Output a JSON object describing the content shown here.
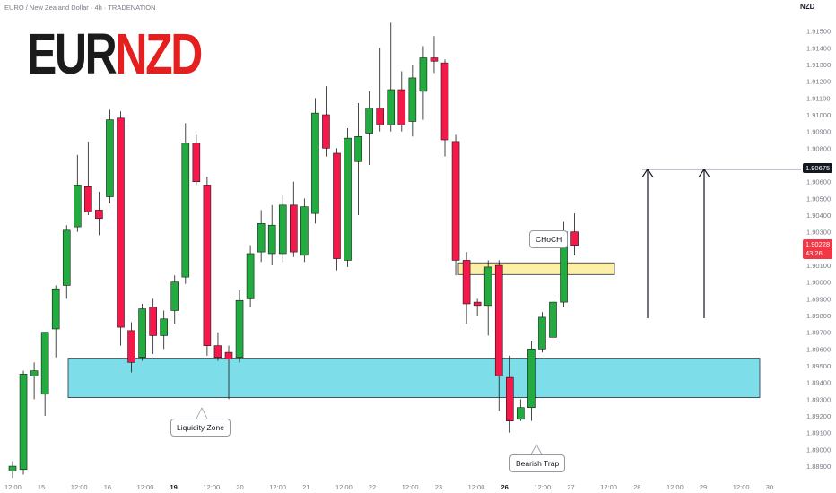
{
  "header": {
    "symbol_line": "EURO / New Zealand Dollar · 4h · TRADENATION",
    "currency": "NZD"
  },
  "logo": {
    "part1": "EUR",
    "part2": "NZD"
  },
  "annotations": {
    "choch": "CHoCH",
    "liquidity_zone": "Liquidity Zone",
    "bearish_trap": "Bearish Trap"
  },
  "price_tags": {
    "target_price": "1.90675",
    "current_price": "1.90228",
    "countdown": "43:26"
  },
  "colors": {
    "bull": "#22ab3f",
    "bear": "#f5184b",
    "zone_blue": "#7ddde8",
    "zone_yellow": "#fdf0a6",
    "current_tag": "#f23645"
  },
  "chart_data": {
    "type": "candlestick",
    "symbol": "EURNZD",
    "timeframe": "4h",
    "y_range": [
      1.8882,
      1.916
    ],
    "y_ticks": [
      "1.91500",
      "1.91400",
      "1.91300",
      "1.91200",
      "1.91100",
      "1.91000",
      "1.90900",
      "1.90800",
      "1.90700",
      "1.90600",
      "1.90500",
      "1.90400",
      "1.90300",
      "1.90200",
      "1.90100",
      "1.90000",
      "1.89900",
      "1.89800",
      "1.89700",
      "1.89600",
      "1.89500",
      "1.89400",
      "1.89300",
      "1.89200",
      "1.89100",
      "1.89000",
      "1.88900"
    ],
    "x_ticks": [
      {
        "label": "12:00",
        "bold": false
      },
      {
        "label": "15",
        "bold": false
      },
      {
        "label": "12:00",
        "bold": false
      },
      {
        "label": "16",
        "bold": false
      },
      {
        "label": "12:00",
        "bold": false
      },
      {
        "label": "19",
        "bold": true
      },
      {
        "label": "12:00",
        "bold": false
      },
      {
        "label": "20",
        "bold": false
      },
      {
        "label": "12:00",
        "bold": false
      },
      {
        "label": "21",
        "bold": false
      },
      {
        "label": "12:00",
        "bold": false
      },
      {
        "label": "22",
        "bold": false
      },
      {
        "label": "12:00",
        "bold": false
      },
      {
        "label": "23",
        "bold": false
      },
      {
        "label": "12:00",
        "bold": false
      },
      {
        "label": "26",
        "bold": true
      },
      {
        "label": "12:00",
        "bold": false
      },
      {
        "label": "27",
        "bold": false
      },
      {
        "label": "12:00",
        "bold": false
      },
      {
        "label": "28",
        "bold": false
      },
      {
        "label": "12:00",
        "bold": false
      },
      {
        "label": "29",
        "bold": false
      },
      {
        "label": "12:00",
        "bold": false
      },
      {
        "label": "30",
        "bold": false
      }
    ],
    "candles": [
      {
        "o": 1.8887,
        "h": 1.8893,
        "l": 1.8883,
        "c": 1.889
      },
      {
        "o": 1.8888,
        "h": 1.8947,
        "l": 1.8885,
        "c": 1.8945
      },
      {
        "o": 1.8944,
        "h": 1.8952,
        "l": 1.893,
        "c": 1.8947
      },
      {
        "o": 1.8933,
        "h": 1.897,
        "l": 1.892,
        "c": 1.897
      },
      {
        "o": 1.8972,
        "h": 1.8998,
        "l": 1.8955,
        "c": 1.8996
      },
      {
        "o": 1.8998,
        "h": 1.9034,
        "l": 1.899,
        "c": 1.9031
      },
      {
        "o": 1.9033,
        "h": 1.9076,
        "l": 1.903,
        "c": 1.9058
      },
      {
        "o": 1.9057,
        "h": 1.9084,
        "l": 1.904,
        "c": 1.9042
      },
      {
        "o": 1.9043,
        "h": 1.9054,
        "l": 1.9028,
        "c": 1.9038
      },
      {
        "o": 1.9051,
        "h": 1.9103,
        "l": 1.9047,
        "c": 1.9097
      },
      {
        "o": 1.9098,
        "h": 1.9102,
        "l": 1.8962,
        "c": 1.8973
      },
      {
        "o": 1.8971,
        "h": 1.8976,
        "l": 1.8946,
        "c": 1.8952
      },
      {
        "o": 1.8955,
        "h": 1.8987,
        "l": 1.8953,
        "c": 1.8984
      },
      {
        "o": 1.8985,
        "h": 1.899,
        "l": 1.8957,
        "c": 1.8968
      },
      {
        "o": 1.8968,
        "h": 1.8983,
        "l": 1.896,
        "c": 1.8978
      },
      {
        "o": 1.8983,
        "h": 1.9004,
        "l": 1.8975,
        "c": 1.9
      },
      {
        "o": 1.9003,
        "h": 1.9095,
        "l": 1.8999,
        "c": 1.9083
      },
      {
        "o": 1.9083,
        "h": 1.9088,
        "l": 1.9058,
        "c": 1.906
      },
      {
        "o": 1.9058,
        "h": 1.9063,
        "l": 1.8956,
        "c": 1.8962
      },
      {
        "o": 1.8962,
        "h": 1.897,
        "l": 1.8953,
        "c": 1.8955
      },
      {
        "o": 1.8958,
        "h": 1.8962,
        "l": 1.893,
        "c": 1.8954
      },
      {
        "o": 1.8955,
        "h": 1.8995,
        "l": 1.8952,
        "c": 1.8989
      },
      {
        "o": 1.899,
        "h": 1.9022,
        "l": 1.8985,
        "c": 1.9017
      },
      {
        "o": 1.9018,
        "h": 1.9043,
        "l": 1.9012,
        "c": 1.9035
      },
      {
        "o": 1.9017,
        "h": 1.9046,
        "l": 1.901,
        "c": 1.9034
      },
      {
        "o": 1.9017,
        "h": 1.9052,
        "l": 1.9012,
        "c": 1.9046
      },
      {
        "o": 1.9046,
        "h": 1.906,
        "l": 1.9015,
        "c": 1.9018
      },
      {
        "o": 1.9016,
        "h": 1.905,
        "l": 1.9012,
        "c": 1.9045
      },
      {
        "o": 1.9041,
        "h": 1.911,
        "l": 1.9035,
        "c": 1.9101
      },
      {
        "o": 1.91,
        "h": 1.9117,
        "l": 1.9075,
        "c": 1.908
      },
      {
        "o": 1.9077,
        "h": 1.908,
        "l": 1.9007,
        "c": 1.9014
      },
      {
        "o": 1.9013,
        "h": 1.9092,
        "l": 1.9009,
        "c": 1.9086
      },
      {
        "o": 1.9072,
        "h": 1.9107,
        "l": 1.904,
        "c": 1.9087
      },
      {
        "o": 1.9089,
        "h": 1.9114,
        "l": 1.907,
        "c": 1.9104
      },
      {
        "o": 1.9104,
        "h": 1.914,
        "l": 1.909,
        "c": 1.9094
      },
      {
        "o": 1.9094,
        "h": 1.9155,
        "l": 1.909,
        "c": 1.9115
      },
      {
        "o": 1.9115,
        "h": 1.9126,
        "l": 1.909,
        "c": 1.9094
      },
      {
        "o": 1.9096,
        "h": 1.913,
        "l": 1.9087,
        "c": 1.9122
      },
      {
        "o": 1.9114,
        "h": 1.9141,
        "l": 1.9097,
        "c": 1.9134
      },
      {
        "o": 1.9134,
        "h": 1.9147,
        "l": 1.9125,
        "c": 1.9132
      },
      {
        "o": 1.9131,
        "h": 1.9133,
        "l": 1.9075,
        "c": 1.9085
      },
      {
        "o": 1.9084,
        "h": 1.9088,
        "l": 1.9004,
        "c": 1.9013
      },
      {
        "o": 1.9013,
        "h": 1.9018,
        "l": 1.8975,
        "c": 1.8987
      },
      {
        "o": 1.8988,
        "h": 1.899,
        "l": 1.898,
        "c": 1.8986
      },
      {
        "o": 1.8986,
        "h": 1.9013,
        "l": 1.8968,
        "c": 1.9009
      },
      {
        "o": 1.901,
        "h": 1.9013,
        "l": 1.8923,
        "c": 1.8944
      },
      {
        "o": 1.8943,
        "h": 1.8956,
        "l": 1.891,
        "c": 1.8917
      },
      {
        "o": 1.8918,
        "h": 1.893,
        "l": 1.8917,
        "c": 1.8925
      },
      {
        "o": 1.8925,
        "h": 1.8965,
        "l": 1.8917,
        "c": 1.896
      },
      {
        "o": 1.896,
        "h": 1.8982,
        "l": 1.8958,
        "c": 1.8979
      },
      {
        "o": 1.8967,
        "h": 1.8991,
        "l": 1.8963,
        "c": 1.8988
      },
      {
        "o": 1.8988,
        "h": 1.9036,
        "l": 1.8985,
        "c": 1.903
      },
      {
        "o": 1.903,
        "h": 1.9041,
        "l": 1.9016,
        "c": 1.9022
      }
    ],
    "zones": [
      {
        "name": "Liquidity Zone",
        "low": 1.8931,
        "high": 1.89545,
        "color": "#7ddde8"
      },
      {
        "name": "CHoCH",
        "low": 1.90045,
        "high": 1.90115,
        "color": "#fdf0a6"
      }
    ],
    "target_level": 1.90675,
    "current_price": 1.90228
  }
}
